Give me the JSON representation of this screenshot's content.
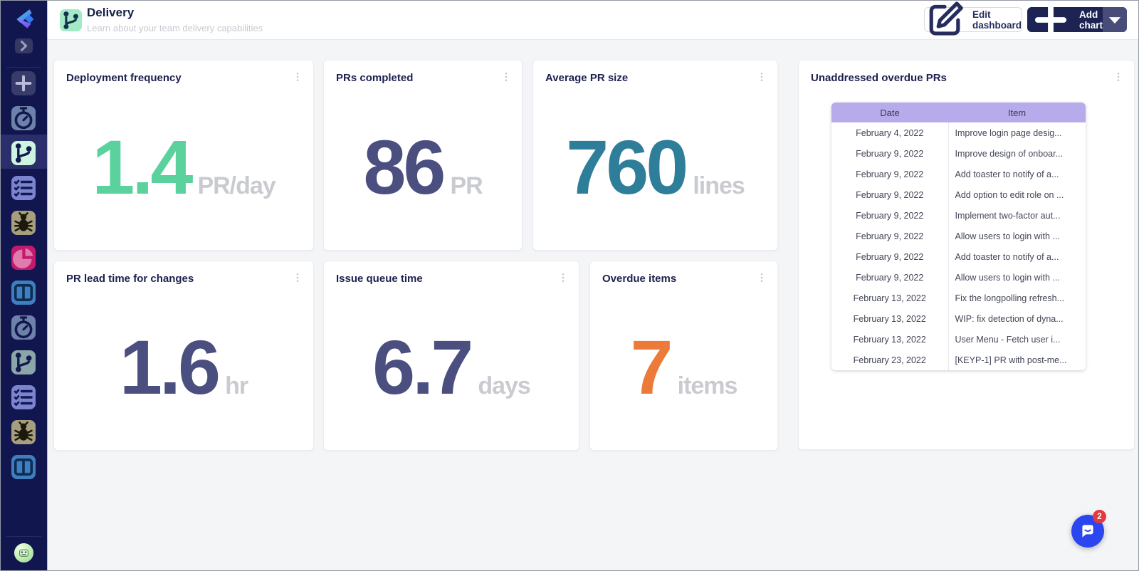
{
  "header": {
    "icon": "git-branch-icon",
    "title": "Delivery",
    "subtitle": "Learn about your team delivery capabilities",
    "edit_button": "Edit dashboard",
    "add_chart_button": "Add chart"
  },
  "sidebar": {
    "items": [
      {
        "icon": "plus-icon",
        "bg": "#383c6a",
        "fg": "#b9bcd8",
        "selected": false
      },
      {
        "icon": "stopwatch-icon",
        "bg": "#6d82a9",
        "fg": "#131850",
        "selected": false
      },
      {
        "icon": "git-branch-icon",
        "bg": "#cdf4e0",
        "fg": "#131850",
        "selected": true
      },
      {
        "icon": "checklist-icon",
        "bg": "#7b84ce",
        "fg": "#131850",
        "selected": false
      },
      {
        "icon": "bug-icon",
        "bg": "#a79e7d",
        "fg": "#1b180c",
        "selected": false
      },
      {
        "icon": "pie-chart-icon",
        "bg": "#c21a6f",
        "fg": "#e07cac",
        "selected": false
      },
      {
        "icon": "board-icon",
        "bg": "#3f7ec1",
        "fg": "#0e2c50",
        "selected": false
      },
      {
        "icon": "stopwatch-icon",
        "bg": "#6d82a9",
        "fg": "#131850",
        "selected": false
      },
      {
        "icon": "git-branch-icon",
        "bg": "#8aa6a8",
        "fg": "#131850",
        "selected": false
      },
      {
        "icon": "checklist-icon",
        "bg": "#7b84ce",
        "fg": "#131850",
        "selected": false
      },
      {
        "icon": "bug-icon",
        "bg": "#a79e7d",
        "fg": "#1b180c",
        "selected": false
      },
      {
        "icon": "board-icon",
        "bg": "#3f7ec1",
        "fg": "#0e2c50",
        "selected": false
      }
    ]
  },
  "cards": [
    {
      "title": "Deployment frequency",
      "value": "1.4",
      "unit": "PR/day",
      "color": "#5bd19d"
    },
    {
      "title": "PRs completed",
      "value": "86",
      "unit": "PR",
      "color": "#4b4f80"
    },
    {
      "title": "Average PR size",
      "value": "760",
      "unit": "lines",
      "color": "#2f7e99"
    },
    {
      "title": "PR lead time for changes",
      "value": "1.6",
      "unit": "hr",
      "color": "#4b4f80"
    },
    {
      "title": "Issue queue time",
      "value": "6.7",
      "unit": "days",
      "color": "#4b4f80"
    },
    {
      "title": "Overdue items",
      "value": "7",
      "unit": "items",
      "color": "#ec7a39"
    }
  ],
  "table_card": {
    "title": "Unaddressed overdue PRs",
    "columns": [
      "Date",
      "Item"
    ],
    "rows": [
      [
        "February 4, 2022",
        "Improve login page desig..."
      ],
      [
        "February 9, 2022",
        "Improve design of onboar..."
      ],
      [
        "February 9, 2022",
        "Add toaster to notify of a..."
      ],
      [
        "February 9, 2022",
        "Add option to edit role on ..."
      ],
      [
        "February 9, 2022",
        "Implement two-factor aut..."
      ],
      [
        "February 9, 2022",
        "Allow users to login with ..."
      ],
      [
        "February 9, 2022",
        "Add toaster to notify of a..."
      ],
      [
        "February 9, 2022",
        "Allow users to login with ..."
      ],
      [
        "February 13, 2022",
        "Fix the longpolling refresh..."
      ],
      [
        "February 13, 2022",
        "WIP: fix detection of dyna..."
      ],
      [
        "February 13, 2022",
        "User Menu - Fetch user i..."
      ],
      [
        "February 23, 2022",
        "[KEYP-1] PR with post-me..."
      ]
    ]
  },
  "chat": {
    "badge_count": "2"
  },
  "colors": {
    "sidebar_bg": "#12164e",
    "main_bg": "#f4f5f7",
    "table_header_bg": "#b8abec",
    "add_chart_bg": "#1d2352",
    "unit_gray": "#c9cbd0",
    "chat_blue": "#2b46f0",
    "badge_red": "#e23b3f"
  }
}
